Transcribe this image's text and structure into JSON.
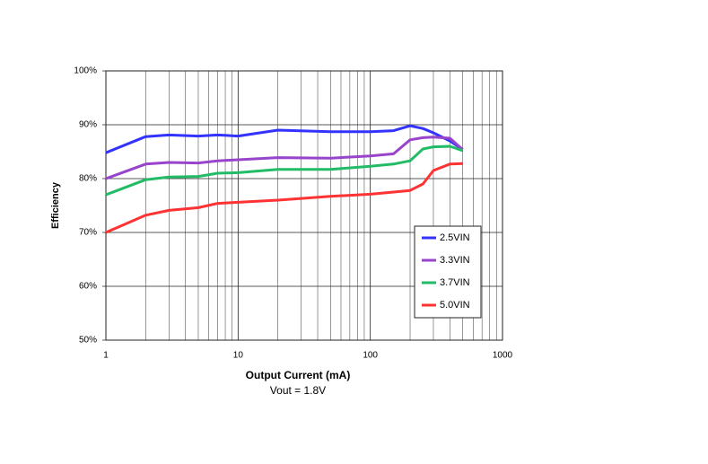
{
  "chart_data": {
    "type": "line",
    "x_label": "Output Current (mA)",
    "x_sublabel": "Vout = 1.8V",
    "y_label": "Efficiency",
    "x_scale": "log",
    "grid": true,
    "legend_position": "right",
    "x": [
      1,
      2,
      3,
      5,
      7,
      10,
      20,
      50,
      100,
      150,
      200,
      250,
      300,
      400,
      500
    ],
    "series": [
      {
        "name": "2.5VIN",
        "color": "#3333ff",
        "values": [
          84.8,
          87.8,
          88.1,
          87.9,
          88.1,
          87.9,
          89.0,
          88.7,
          88.7,
          88.9,
          89.8,
          89.3,
          88.5,
          87.0,
          85.4
        ]
      },
      {
        "name": "3.3VIN",
        "color": "#9944cc",
        "values": [
          80.0,
          82.7,
          83.0,
          82.9,
          83.3,
          83.5,
          83.9,
          83.8,
          84.2,
          84.6,
          87.2,
          87.6,
          87.7,
          87.5,
          85.4
        ]
      },
      {
        "name": "3.7VIN",
        "color": "#22bb66",
        "values": [
          77.0,
          79.8,
          80.3,
          80.4,
          81.0,
          81.1,
          81.7,
          81.7,
          82.3,
          82.7,
          83.3,
          85.5,
          85.9,
          86.0,
          85.2
        ]
      },
      {
        "name": "5.0VIN",
        "color": "#ff3333",
        "values": [
          70.0,
          73.2,
          74.1,
          74.6,
          75.4,
          75.6,
          76.0,
          76.7,
          77.1,
          77.5,
          77.8,
          79.0,
          81.5,
          82.7,
          82.8
        ]
      }
    ],
    "xlim": [
      1,
      1000
    ],
    "xticks": [
      1,
      10,
      100,
      1000
    ],
    "xminorticks": [
      2,
      3,
      4,
      5,
      6,
      7,
      8,
      9,
      20,
      30,
      40,
      50,
      60,
      70,
      80,
      90,
      200,
      300,
      400,
      500,
      600,
      700,
      800,
      900
    ],
    "ylim": [
      50,
      100
    ],
    "yticks": [
      {
        "value": 50,
        "label": "50%"
      },
      {
        "value": 60,
        "label": "60%"
      },
      {
        "value": 70,
        "label": "70%"
      },
      {
        "value": 80,
        "label": "80%"
      },
      {
        "value": 90,
        "label": "90%"
      },
      {
        "value": 100,
        "label": "100%"
      }
    ]
  }
}
